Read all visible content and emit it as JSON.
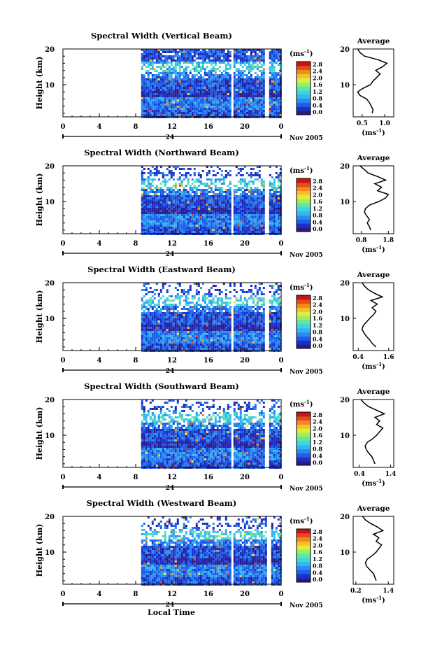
{
  "figure": {
    "xlabel": "Local Time",
    "xticks": [
      "0",
      "4",
      "8",
      "12",
      "16",
      "20",
      "0"
    ],
    "date_day": "24",
    "date_month": "Nov 2005",
    "ylabel": "Height (km)",
    "yticks": [
      "20",
      "10"
    ],
    "cbar_unit": "(ms",
    "cbar_unit_exp": "-1",
    "cbar_unit_close": ")",
    "cbar_ticks": [
      "2.8",
      "2.4",
      "2.0",
      "1.6",
      "1.2",
      "0.8",
      "0.4",
      "0.0"
    ],
    "avg_title": "Average",
    "avg_unit": "(ms",
    "avg_unit_exp": "-1",
    "avg_unit_close": ")",
    "colorscale": [
      "#2a1a8a",
      "#1e2fc8",
      "#1f5ee6",
      "#2a8cf2",
      "#36b6f0",
      "#3fd6d8",
      "#5ee6a6",
      "#9cef5e",
      "#dcef3a",
      "#f6c02a",
      "#f38a1e",
      "#e84a1a",
      "#c81414"
    ]
  },
  "chart_data": [
    {
      "type": "heatmap",
      "title": "Spectral Width (Vertical Beam)",
      "x_range_hours": [
        0,
        24
      ],
      "y_range_km": [
        1,
        20
      ],
      "data_start_hour": 8.6,
      "gaps_hours": [
        [
          18.3,
          18.7
        ],
        [
          22.2,
          22.5
        ]
      ],
      "avg_xticks": [
        "0.5",
        "1.0"
      ],
      "avg_xlim": [
        0.3,
        1.2
      ],
      "avg_profile": {
        "height_km": [
          2,
          3,
          4,
          5,
          6,
          7,
          8,
          9,
          10,
          11,
          12,
          13,
          14,
          15,
          16,
          17,
          18,
          19,
          20
        ],
        "value": [
          0.72,
          0.74,
          0.7,
          0.66,
          0.6,
          0.45,
          0.4,
          0.52,
          0.68,
          0.74,
          0.82,
          0.9,
          0.8,
          0.95,
          1.05,
          0.85,
          0.55,
          0.45,
          0.4
        ]
      }
    },
    {
      "type": "heatmap",
      "title": "Spectral Width (Northward Beam)",
      "x_range_hours": [
        0,
        24
      ],
      "y_range_km": [
        1,
        20
      ],
      "data_start_hour": 8.6,
      "gaps_hours": [
        [
          18.3,
          18.7
        ],
        [
          22.2,
          22.6
        ]
      ],
      "avg_xticks": [
        "0.8",
        "1.8"
      ],
      "avg_xlim": [
        0.5,
        2.0
      ],
      "avg_profile": {
        "height_km": [
          2,
          3,
          4,
          5,
          6,
          7,
          8,
          9,
          10,
          11,
          12,
          13,
          14,
          15,
          16,
          17,
          18,
          19,
          20
        ],
        "value": [
          1.15,
          1.1,
          1.02,
          1.1,
          1.0,
          0.92,
          0.95,
          1.1,
          1.45,
          1.7,
          1.8,
          1.4,
          1.55,
          1.3,
          1.7,
          1.4,
          1.05,
          0.9,
          0.75
        ]
      }
    },
    {
      "type": "heatmap",
      "title": "Spectral Width (Eastward Beam)",
      "x_range_hours": [
        0,
        24
      ],
      "y_range_km": [
        1,
        20
      ],
      "data_start_hour": 8.6,
      "gaps_hours": [
        [
          18.3,
          18.7
        ],
        [
          22.2,
          22.6
        ]
      ],
      "avg_xticks": [
        "0.4",
        "1.6"
      ],
      "avg_xlim": [
        0.2,
        1.8
      ],
      "avg_profile": {
        "height_km": [
          2,
          3,
          4,
          5,
          6,
          7,
          8,
          9,
          10,
          11,
          12,
          13,
          14,
          15,
          16,
          17,
          18,
          19,
          20
        ],
        "value": [
          1.1,
          0.95,
          0.85,
          0.72,
          0.62,
          0.55,
          0.6,
          0.72,
          0.85,
          1.0,
          1.1,
          0.95,
          1.15,
          0.9,
          1.35,
          1.05,
          0.8,
          0.65,
          0.55
        ]
      }
    },
    {
      "type": "heatmap",
      "title": "Spectral Width (Southward Beam)",
      "x_range_hours": [
        0,
        24
      ],
      "y_range_km": [
        1,
        20
      ],
      "data_start_hour": 8.6,
      "gaps_hours": [
        [
          18.3,
          18.7
        ],
        [
          22.2,
          22.6
        ]
      ],
      "avg_xticks": [
        "0.4",
        "1.4"
      ],
      "avg_xlim": [
        0.2,
        1.5
      ],
      "avg_profile": {
        "height_km": [
          2,
          3,
          4,
          5,
          6,
          7,
          8,
          9,
          10,
          11,
          12,
          13,
          14,
          15,
          16,
          17,
          18,
          19,
          20
        ],
        "value": [
          0.9,
          0.85,
          0.8,
          0.7,
          0.62,
          0.58,
          0.65,
          0.82,
          0.95,
          1.05,
          1.15,
          0.95,
          1.05,
          0.9,
          1.2,
          0.95,
          0.7,
          0.55,
          0.45
        ]
      }
    },
    {
      "type": "heatmap",
      "title": "Spectral Width (Westward Beam)",
      "x_range_hours": [
        0,
        24
      ],
      "y_range_km": [
        1,
        20
      ],
      "data_start_hour": 8.6,
      "gaps_hours": [
        [
          18.3,
          18.7
        ],
        [
          22.3,
          22.7
        ]
      ],
      "avg_xticks": [
        "0.2",
        "1.4"
      ],
      "avg_xlim": [
        0.1,
        1.6
      ],
      "avg_profile": {
        "height_km": [
          2,
          3,
          4,
          5,
          6,
          7,
          8,
          9,
          10,
          11,
          12,
          13,
          14,
          15,
          16,
          17,
          18,
          19,
          20
        ],
        "value": [
          0.95,
          0.9,
          0.85,
          0.72,
          0.6,
          0.55,
          0.62,
          0.8,
          0.95,
          1.05,
          1.15,
          0.95,
          1.05,
          0.85,
          1.2,
          1.0,
          0.75,
          0.55,
          0.45
        ]
      }
    }
  ]
}
